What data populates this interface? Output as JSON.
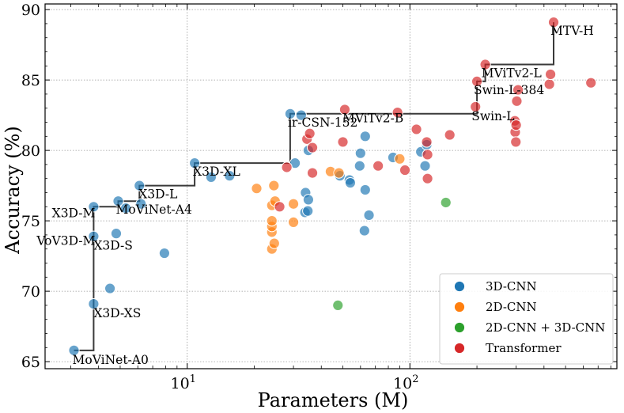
{
  "chart_data": {
    "type": "scatter",
    "xscale": "log",
    "xlabel": "Parameters (M)",
    "ylabel": "Accuracy (%)",
    "xlim": [
      2.3,
      850
    ],
    "ylim": [
      64.5,
      90.4
    ],
    "x_ticks": [
      {
        "value": 10,
        "base": "10",
        "exp": "1"
      },
      {
        "value": 100,
        "base": "10",
        "exp": "2"
      }
    ],
    "y_ticks": [
      65,
      70,
      75,
      80,
      85,
      90
    ],
    "grid": true,
    "legend_position": "lower-right",
    "series": [
      {
        "name": "3D-CNN",
        "color": "#1f77b4",
        "points": [
          {
            "x": 3.1,
            "y": 65.8
          },
          {
            "x": 3.8,
            "y": 69.1
          },
          {
            "x": 3.8,
            "y": 73.9
          },
          {
            "x": 3.8,
            "y": 76.0
          },
          {
            "x": 4.5,
            "y": 70.2
          },
          {
            "x": 4.8,
            "y": 74.1
          },
          {
            "x": 4.9,
            "y": 76.4
          },
          {
            "x": 5.3,
            "y": 75.9
          },
          {
            "x": 6.1,
            "y": 77.5
          },
          {
            "x": 6.2,
            "y": 76.2
          },
          {
            "x": 7.9,
            "y": 72.7
          },
          {
            "x": 10.8,
            "y": 79.1
          },
          {
            "x": 12.8,
            "y": 78.1
          },
          {
            "x": 15.5,
            "y": 78.2
          },
          {
            "x": 29.0,
            "y": 82.6
          },
          {
            "x": 30.5,
            "y": 79.1
          },
          {
            "x": 32.5,
            "y": 82.5
          },
          {
            "x": 33.8,
            "y": 75.6
          },
          {
            "x": 34.0,
            "y": 77.0
          },
          {
            "x": 34.8,
            "y": 75.7
          },
          {
            "x": 35.0,
            "y": 76.5
          },
          {
            "x": 35.0,
            "y": 80.0
          },
          {
            "x": 48.5,
            "y": 78.2
          },
          {
            "x": 53.5,
            "y": 77.9
          },
          {
            "x": 54.0,
            "y": 77.7
          },
          {
            "x": 59.5,
            "y": 78.9
          },
          {
            "x": 60.0,
            "y": 79.8
          },
          {
            "x": 62.5,
            "y": 74.3
          },
          {
            "x": 63.0,
            "y": 77.2
          },
          {
            "x": 63.0,
            "y": 81.0
          },
          {
            "x": 65.5,
            "y": 75.4
          },
          {
            "x": 84.0,
            "y": 79.5
          },
          {
            "x": 112.0,
            "y": 79.9
          },
          {
            "x": 117.0,
            "y": 78.9
          },
          {
            "x": 119.0,
            "y": 80.4
          }
        ]
      },
      {
        "name": "2D-CNN",
        "color": "#ff7f0e",
        "points": [
          {
            "x": 20.5,
            "y": 77.3
          },
          {
            "x": 24.0,
            "y": 73.0
          },
          {
            "x": 24.0,
            "y": 74.2
          },
          {
            "x": 24.0,
            "y": 74.6
          },
          {
            "x": 24.0,
            "y": 75.0
          },
          {
            "x": 24.0,
            "y": 76.1
          },
          {
            "x": 24.5,
            "y": 77.5
          },
          {
            "x": 24.6,
            "y": 73.4
          },
          {
            "x": 24.8,
            "y": 76.4
          },
          {
            "x": 30.0,
            "y": 74.9
          },
          {
            "x": 30.0,
            "y": 76.2
          },
          {
            "x": 44.0,
            "y": 78.5
          },
          {
            "x": 48.0,
            "y": 78.4
          },
          {
            "x": 90.0,
            "y": 79.4
          }
        ]
      },
      {
        "name": "2D-CNN + 3D-CNN",
        "color": "#2ca02c",
        "points": [
          {
            "x": 47.5,
            "y": 69.0
          },
          {
            "x": 145.0,
            "y": 76.3
          }
        ]
      },
      {
        "name": "Transformer",
        "color": "#d62728",
        "points": [
          {
            "x": 26.0,
            "y": 76.0
          },
          {
            "x": 28.0,
            "y": 78.8
          },
          {
            "x": 34.5,
            "y": 80.8
          },
          {
            "x": 35.5,
            "y": 81.2
          },
          {
            "x": 36.5,
            "y": 80.2
          },
          {
            "x": 36.5,
            "y": 78.4
          },
          {
            "x": 50.0,
            "y": 80.6
          },
          {
            "x": 51.0,
            "y": 82.9
          },
          {
            "x": 72.0,
            "y": 78.9
          },
          {
            "x": 88.0,
            "y": 82.7
          },
          {
            "x": 95.0,
            "y": 78.6
          },
          {
            "x": 107.0,
            "y": 81.5
          },
          {
            "x": 119.0,
            "y": 80.6
          },
          {
            "x": 120.0,
            "y": 79.7
          },
          {
            "x": 120.0,
            "y": 78.0
          },
          {
            "x": 151.0,
            "y": 81.1
          },
          {
            "x": 197.0,
            "y": 83.1
          },
          {
            "x": 200.0,
            "y": 84.9
          },
          {
            "x": 218.0,
            "y": 86.1
          },
          {
            "x": 296.0,
            "y": 82.1
          },
          {
            "x": 297.0,
            "y": 81.3
          },
          {
            "x": 299.0,
            "y": 80.6
          },
          {
            "x": 300.0,
            "y": 81.8
          },
          {
            "x": 302.0,
            "y": 83.5
          },
          {
            "x": 306.0,
            "y": 84.3
          },
          {
            "x": 423.0,
            "y": 84.7
          },
          {
            "x": 428.0,
            "y": 85.4
          },
          {
            "x": 442.0,
            "y": 89.1
          },
          {
            "x": 650.0,
            "y": 84.8
          }
        ]
      }
    ],
    "pareto_frontier": [
      {
        "x": 3.1,
        "y": 65.8
      },
      {
        "x": 3.8,
        "y": 65.8
      },
      {
        "x": 3.8,
        "y": 76.0
      },
      {
        "x": 4.9,
        "y": 76.0
      },
      {
        "x": 4.9,
        "y": 76.4
      },
      {
        "x": 6.1,
        "y": 76.4
      },
      {
        "x": 6.1,
        "y": 77.5
      },
      {
        "x": 10.8,
        "y": 77.5
      },
      {
        "x": 10.8,
        "y": 79.1
      },
      {
        "x": 29.0,
        "y": 79.1
      },
      {
        "x": 29.0,
        "y": 82.6
      },
      {
        "x": 200.0,
        "y": 82.6
      },
      {
        "x": 200.0,
        "y": 84.9
      },
      {
        "x": 218.0,
        "y": 84.9
      },
      {
        "x": 218.0,
        "y": 86.1
      },
      {
        "x": 442.0,
        "y": 86.1
      },
      {
        "x": 442.0,
        "y": 89.1
      }
    ],
    "annotations": [
      {
        "text": "MoViNet-A0",
        "x": 3.1,
        "y": 65.8
      },
      {
        "text": "X3D-XS",
        "x": 3.8,
        "y": 69.1
      },
      {
        "text": "X3D-S",
        "x": 3.8,
        "y": 73.9
      },
      {
        "text": "VoV3D-M",
        "x": 3.8,
        "y": 73.9
      },
      {
        "text": "X3D-M",
        "x": 3.8,
        "y": 76.0
      },
      {
        "text": "MoViNet-A4",
        "x": 4.9,
        "y": 76.4
      },
      {
        "text": "X3D-L",
        "x": 6.1,
        "y": 77.5
      },
      {
        "text": "X3D-XL",
        "x": 10.8,
        "y": 79.1
      },
      {
        "text": "ir-CSN-152",
        "x": 29.0,
        "y": 82.6
      },
      {
        "text": "MViTv2-B",
        "x": 51.0,
        "y": 82.9
      },
      {
        "text": "Swin-L",
        "x": 197.0,
        "y": 83.1
      },
      {
        "text": "Swin-L-384",
        "x": 200.0,
        "y": 84.9
      },
      {
        "text": "MViTv2-L",
        "x": 218.0,
        "y": 86.1
      },
      {
        "text": "MTV-H",
        "x": 442.0,
        "y": 89.1
      }
    ]
  }
}
